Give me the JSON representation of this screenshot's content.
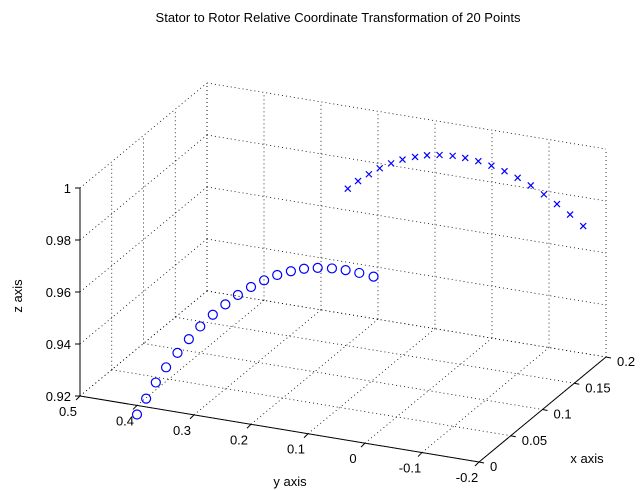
{
  "chart_data": {
    "type": "scatter",
    "projection": "3d",
    "title": "Stator to Rotor Relative Coordinate Transformation of 20 Points",
    "xlabel": "x axis",
    "ylabel": "y axis",
    "zlabel": "z axis",
    "xlim": [
      0,
      0.2
    ],
    "ylim": [
      -0.2,
      0.5
    ],
    "zlim": [
      0.92,
      1.0
    ],
    "x_ticks": [
      "0",
      "0.05",
      "0.1",
      "0.15",
      "0.2"
    ],
    "y_ticks": [
      "-0.2",
      "-0.1",
      "0",
      "0.1",
      "0.2",
      "0.3",
      "0.4",
      "0.5"
    ],
    "z_ticks": [
      "0.92",
      "0.94",
      "0.96",
      "0.98",
      "1"
    ],
    "grid": true,
    "series": [
      {
        "marker": "o",
        "color": "#0000ff",
        "x": [
          0,
          0,
          0,
          0,
          0,
          0,
          0,
          0,
          0,
          0,
          0,
          0,
          0,
          0,
          0,
          0,
          0,
          0,
          0,
          0
        ],
        "y": [
          0.4,
          0.384,
          0.367,
          0.349,
          0.329,
          0.309,
          0.289,
          0.267,
          0.245,
          0.223,
          0.2,
          0.177,
          0.154,
          0.13,
          0.107,
          0.083,
          0.058,
          0.034,
          0.01,
          -0.015
        ],
        "z": [
          0.9165,
          0.9232,
          0.93,
          0.9365,
          0.9428,
          0.9488,
          0.9544,
          0.9597,
          0.9645,
          0.9689,
          0.9728,
          0.9762,
          0.9791,
          0.9814,
          0.9832,
          0.9844,
          0.9851,
          0.9853,
          0.9851,
          0.9846
        ]
      },
      {
        "marker": "x",
        "color": "#0000ff",
        "x": [
          0.2,
          0.2,
          0.2,
          0.2,
          0.2,
          0.2,
          0.2,
          0.2,
          0.2,
          0.2,
          0.2,
          0.2,
          0.2,
          0.2,
          0.2,
          0.2,
          0.2,
          0.2,
          0.2,
          0.2
        ],
        "y": [
          0.253,
          0.235,
          0.216,
          0.197,
          0.177,
          0.157,
          0.135,
          0.114,
          0.092,
          0.069,
          0.047,
          0.024,
          0.001,
          -0.022,
          -0.045,
          -0.068,
          -0.091,
          -0.114,
          -0.137,
          -0.16
        ],
        "z": [
          0.9683,
          0.9719,
          0.9752,
          0.9782,
          0.9808,
          0.983,
          0.9848,
          0.9862,
          0.9871,
          0.9876,
          0.9876,
          0.9872,
          0.9863,
          0.985,
          0.9833,
          0.9812,
          0.9786,
          0.9757,
          0.9725,
          0.9689
        ]
      }
    ]
  }
}
